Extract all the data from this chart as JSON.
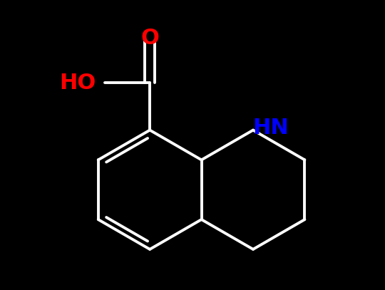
{
  "background_color": "#000000",
  "bond_color": "#ffffff",
  "atom_colors": {
    "O": "#ff0000",
    "N": "#0000ff",
    "C": "#ffffff",
    "H": "#ffffff"
  },
  "bond_width": 2.8,
  "figsize": [
    5.4,
    4.07
  ],
  "dpi": 100
}
